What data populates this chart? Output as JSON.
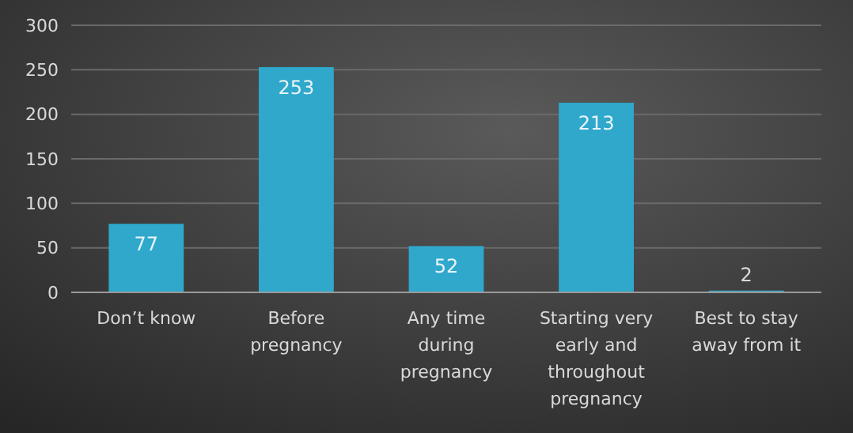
{
  "chart_data": {
    "type": "bar",
    "categories": [
      "Don’t know",
      "Before pregnancy",
      "Any time during pregnancy",
      "Starting very early and throughout pregnancy",
      "Best to stay away from it"
    ],
    "values": [
      77,
      253,
      52,
      213,
      2
    ],
    "color": "#2fa8cc",
    "ylim": [
      0,
      300
    ],
    "yticks": [
      0,
      50,
      100,
      150,
      200,
      250,
      300
    ],
    "grid": "y",
    "data_labels": true
  }
}
